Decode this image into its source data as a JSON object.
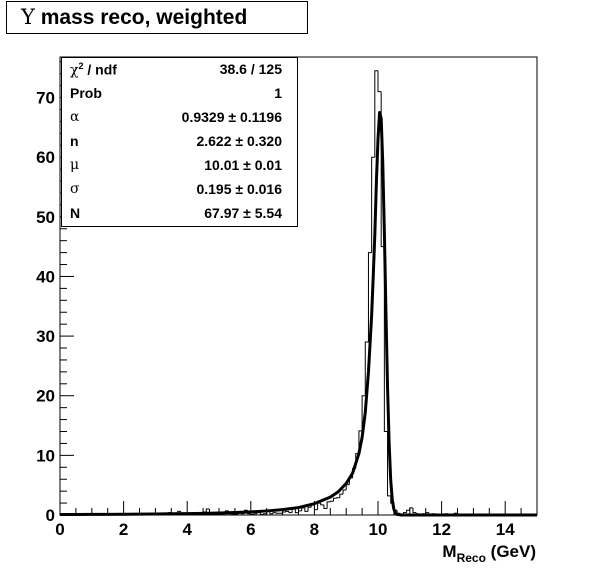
{
  "title": {
    "symbol": "Υ",
    "text": "mass reco, weighted"
  },
  "stats": [
    {
      "symbol": "χ",
      "sup": "2",
      "name": " / ndf",
      "value": "38.6 / 125",
      "greek": true
    },
    {
      "symbol": "",
      "sup": "",
      "name": "Prob",
      "value": "1",
      "greek": false
    },
    {
      "symbol": "α",
      "sup": "",
      "name": "",
      "value": "0.9329  ± 0.1196",
      "greek": true
    },
    {
      "symbol": "",
      "sup": "",
      "name": "n",
      "value": "2.622  ± 0.320",
      "greek": false
    },
    {
      "symbol": "μ",
      "sup": "",
      "name": "",
      "value": "10.01  ± 0.01",
      "greek": true
    },
    {
      "symbol": "σ",
      "sup": "",
      "name": "",
      "value": "0.195  ± 0.016",
      "greek": true
    },
    {
      "symbol": "",
      "sup": "",
      "name": "N",
      "value": "67.97  ± 5.54",
      "greek": false
    }
  ],
  "chart_data": {
    "type": "histogram",
    "xlabel_main": "M",
    "xlabel_sub": "Reco",
    "xlabel_unit": "(GeV)",
    "ylabel": "",
    "xlim": [
      0,
      15
    ],
    "ylim": [
      0,
      76.8
    ],
    "x_ticks": [
      0,
      2,
      4,
      6,
      8,
      10,
      12,
      14
    ],
    "y_ticks": [
      0,
      10,
      20,
      30,
      40,
      50,
      60,
      70
    ],
    "grid": false,
    "bin_width": 0.1,
    "histogram": {
      "bin_centers": [
        0.05,
        0.15,
        0.25,
        0.35,
        0.45,
        0.55,
        0.65,
        0.75,
        0.85,
        0.95,
        1.05,
        1.15,
        1.25,
        1.35,
        1.45,
        1.55,
        1.65,
        1.75,
        1.85,
        1.95,
        2.05,
        2.15,
        2.25,
        2.35,
        2.45,
        2.55,
        2.65,
        2.75,
        2.85,
        2.95,
        3.05,
        3.15,
        3.25,
        3.35,
        3.45,
        3.55,
        3.65,
        3.75,
        3.85,
        3.95,
        4.05,
        4.15,
        4.25,
        4.35,
        4.45,
        4.55,
        4.65,
        4.75,
        4.85,
        4.95,
        5.05,
        5.15,
        5.25,
        5.35,
        5.45,
        5.55,
        5.65,
        5.75,
        5.85,
        5.95,
        6.05,
        6.15,
        6.25,
        6.35,
        6.45,
        6.55,
        6.65,
        6.75,
        6.85,
        6.95,
        7.05,
        7.15,
        7.25,
        7.35,
        7.45,
        7.55,
        7.65,
        7.75,
        7.85,
        7.95,
        8.05,
        8.15,
        8.25,
        8.35,
        8.45,
        8.55,
        8.65,
        8.75,
        8.85,
        8.95,
        9.05,
        9.15,
        9.25,
        9.35,
        9.45,
        9.55,
        9.65,
        9.75,
        9.85,
        9.95,
        10.05,
        10.15,
        10.25,
        10.35,
        10.45,
        10.55,
        10.65,
        10.75,
        10.85,
        10.95,
        11.05,
        11.15,
        11.25,
        11.35,
        11.45,
        11.55,
        11.65,
        11.75,
        11.85,
        11.95,
        12.05,
        12.15,
        12.25,
        12.35,
        12.45,
        12.55,
        12.65,
        12.75,
        12.85,
        12.95,
        13.05,
        13.15,
        13.25,
        13.35,
        13.45,
        13.55,
        13.65,
        13.75,
        13.85,
        13.95,
        14.05,
        14.15,
        14.25,
        14.35,
        14.45,
        14.55,
        14.65,
        14.75,
        14.85,
        14.95
      ],
      "counts": [
        0.1,
        0.0,
        0.0,
        0.1,
        0.0,
        0.0,
        0.1,
        0.2,
        0.0,
        0.1,
        0.0,
        0.1,
        0.0,
        0.2,
        0.0,
        0.0,
        0.1,
        0.0,
        0.2,
        0.0,
        0.1,
        0.0,
        0.2,
        0.1,
        0.0,
        0.0,
        0.1,
        0.0,
        0.1,
        0.2,
        0.0,
        0.2,
        0.1,
        0.0,
        0.4,
        0.0,
        0.1,
        0.6,
        0.0,
        0.1,
        0.0,
        0.3,
        0.0,
        0.1,
        0.2,
        0.5,
        1.0,
        0.2,
        0.0,
        0.2,
        0.0,
        0.2,
        0.7,
        0.2,
        0.1,
        0.1,
        0.3,
        0.2,
        0.8,
        0.2,
        0.1,
        0.2,
        0.4,
        0.1,
        0.2,
        0.6,
        0.2,
        0.4,
        0.3,
        0.3,
        0.5,
        0.6,
        0.4,
        1.0,
        0.4,
        0.7,
        1.2,
        0.6,
        1.3,
        1.8,
        0.9,
        2.0,
        1.7,
        1.1,
        2.2,
        2.3,
        2.8,
        2.9,
        3.5,
        4.2,
        5.1,
        6.2,
        7.8,
        10.3,
        14.1,
        20.0,
        29.0,
        44.0,
        60.0,
        74.5,
        71.0,
        45.0,
        14.0,
        3.2,
        2.0,
        0.8,
        0.3,
        0.1,
        0.4,
        0.8,
        1.2,
        0.4,
        0.2,
        0.1,
        0.2,
        0.4,
        0.1,
        0.2,
        0.1,
        0.0,
        0.0,
        0.2,
        0.1,
        0.0,
        0.3,
        0.1,
        0.0,
        0.1,
        0.0,
        0.1,
        0.0,
        0.0,
        0.1,
        0.0,
        0.0,
        0.1,
        0.0,
        0.0,
        0.1,
        0.0,
        0.0,
        0.0,
        0.1,
        0.0,
        0.0,
        0.1,
        0.0,
        0.0,
        0.0,
        0.0
      ]
    },
    "fit_curve": {
      "x": [
        0,
        0.5,
        1,
        1.5,
        2,
        2.5,
        3,
        3.5,
        4,
        4.5,
        5,
        5.5,
        6,
        6.5,
        7,
        7.5,
        8,
        8.5,
        8.75,
        9,
        9.2,
        9.4,
        9.5,
        9.6,
        9.7,
        9.8,
        9.85,
        9.9,
        9.95,
        10.0,
        10.05,
        10.1,
        10.15,
        10.2,
        10.25,
        10.3,
        10.35,
        10.4,
        10.45,
        10.5,
        10.55,
        10.6,
        10.7,
        10.8,
        11,
        12,
        13,
        14,
        15
      ],
      "y": [
        0.08,
        0.09,
        0.1,
        0.11,
        0.13,
        0.15,
        0.17,
        0.2,
        0.24,
        0.28,
        0.34,
        0.42,
        0.52,
        0.68,
        0.9,
        1.25,
        1.9,
        3.0,
        3.9,
        5.3,
        7.0,
        10.3,
        13.0,
        17.2,
        24.0,
        33.5,
        40.0,
        47.0,
        56.0,
        63.0,
        67.5,
        66.5,
        59.0,
        47.5,
        34.0,
        21.5,
        12.0,
        5.8,
        2.5,
        0.95,
        0.32,
        0.1,
        0.01,
        0.0,
        0.0,
        0.0,
        0.0,
        0.0,
        0.0
      ]
    }
  }
}
